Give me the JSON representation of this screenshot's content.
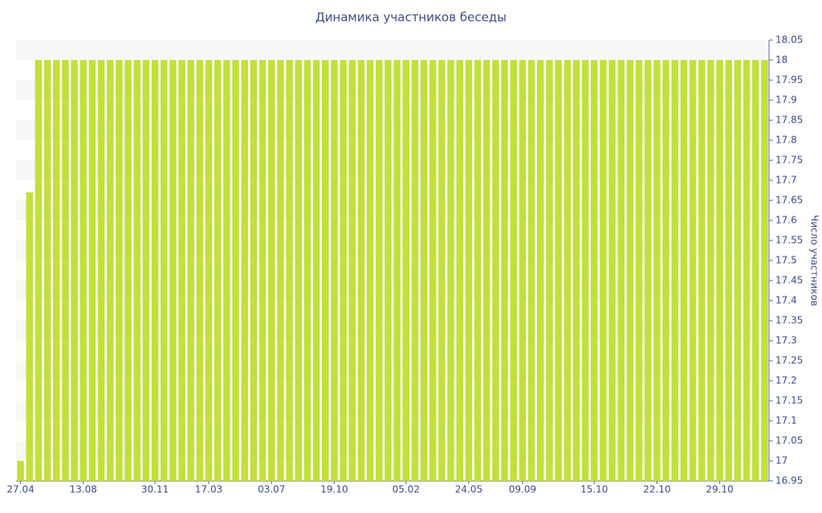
{
  "chart_data": {
    "type": "bar",
    "title": "Динамика участников беседы",
    "y_label": "Число участников",
    "categories": [
      "27.04",
      null,
      null,
      null,
      null,
      null,
      null,
      "13.08",
      null,
      null,
      null,
      null,
      null,
      null,
      null,
      "30.11",
      null,
      null,
      null,
      null,
      null,
      "17.03",
      null,
      null,
      null,
      null,
      null,
      null,
      "03.07",
      null,
      null,
      null,
      null,
      null,
      null,
      "19.10",
      null,
      null,
      null,
      null,
      null,
      null,
      null,
      "05.02",
      null,
      null,
      null,
      null,
      null,
      null,
      "24.05",
      null,
      null,
      null,
      null,
      null,
      "09.09",
      null,
      null,
      null,
      null,
      null,
      null,
      null,
      "15.10",
      null,
      null,
      null,
      null,
      null,
      null,
      "22.10",
      null,
      null,
      null,
      null,
      null,
      null,
      "29.10",
      null,
      null,
      null,
      null,
      null
    ],
    "values": [
      17,
      17.67,
      18,
      18,
      18,
      18,
      18,
      18,
      18,
      18,
      18,
      18,
      18,
      18,
      18,
      18,
      18,
      18,
      18,
      18,
      18,
      18,
      18,
      18,
      18,
      18,
      18,
      18,
      18,
      18,
      18,
      18,
      18,
      18,
      18,
      18,
      18,
      18,
      18,
      18,
      18,
      18,
      18,
      18,
      18,
      18,
      18,
      18,
      18,
      18,
      18,
      18,
      18,
      18,
      18,
      18,
      18,
      18,
      18,
      18,
      18,
      18,
      18,
      18,
      18,
      18,
      18,
      18,
      18,
      18,
      18,
      18,
      18,
      18,
      18,
      18,
      18,
      18,
      18,
      18,
      18,
      18,
      18,
      18
    ],
    "color": "#c2e03a",
    "ylim": [
      16.95,
      18.05
    ],
    "yticks": [
      16.95,
      17,
      17.05,
      17.1,
      17.15,
      17.2,
      17.25,
      17.3,
      17.35,
      17.4,
      17.45,
      17.5,
      17.55,
      17.6,
      17.65,
      17.7,
      17.75,
      17.8,
      17.85,
      17.9,
      17.95,
      18,
      18.05
    ],
    "grid": true,
    "y_axis_side": "right"
  }
}
